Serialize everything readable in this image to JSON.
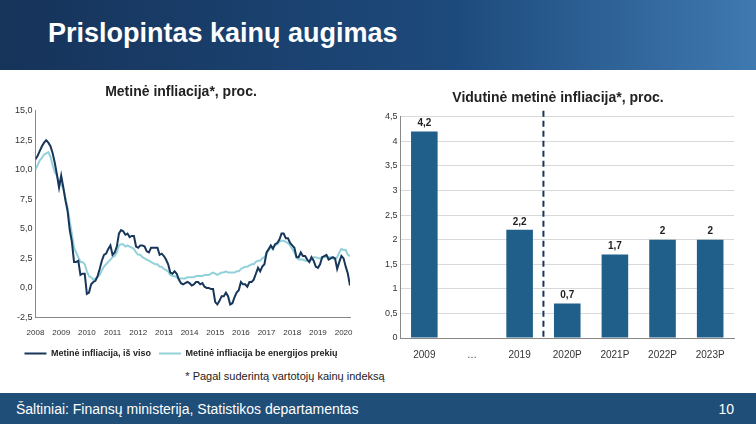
{
  "title": "Prislopintas kainų augimas",
  "footnote": "* Pagal suderintą vartotojų kainų indeksą",
  "source": "Šaltiniai: Finansų ministerija, Statistikos departamentas",
  "page_number": "10",
  "chart_data": [
    {
      "type": "line",
      "title": "Metinė infliacija*, proc.",
      "categories": [
        "2008",
        null,
        null,
        null,
        null,
        null,
        null,
        null,
        null,
        null,
        null,
        null,
        "2009",
        null,
        null,
        null,
        null,
        null,
        null,
        null,
        null,
        null,
        null,
        null,
        "2010",
        null,
        null,
        null,
        null,
        null,
        null,
        null,
        null,
        null,
        null,
        null,
        "2011",
        null,
        null,
        null,
        null,
        null,
        null,
        null,
        null,
        null,
        null,
        null,
        "2012",
        null,
        null,
        null,
        null,
        null,
        null,
        null,
        null,
        null,
        null,
        null,
        "2013",
        null,
        null,
        null,
        null,
        null,
        null,
        null,
        null,
        null,
        null,
        null,
        "2014",
        null,
        null,
        null,
        null,
        null,
        null,
        null,
        null,
        null,
        null,
        null,
        "2015",
        null,
        null,
        null,
        null,
        null,
        null,
        null,
        null,
        null,
        null,
        null,
        "2016",
        null,
        null,
        null,
        null,
        null,
        null,
        null,
        null,
        null,
        null,
        null,
        "2017",
        null,
        null,
        null,
        null,
        null,
        null,
        null,
        null,
        null,
        null,
        null,
        "2018",
        null,
        null,
        null,
        null,
        null,
        null,
        null,
        null,
        null,
        null,
        null,
        "2019",
        null,
        null,
        null,
        null,
        null,
        null,
        null,
        null,
        null,
        null,
        null,
        "2020",
        null,
        null,
        null
      ],
      "series": [
        {
          "name": "Metinė infliacija, iš viso",
          "color": "#17365a",
          "values": [
            10.9,
            11.2,
            11.6,
            12.0,
            12.3,
            12.5,
            12.3,
            12.0,
            11.4,
            10.6,
            9.6,
            8.5,
            9.5,
            8.5,
            7.4,
            6.5,
            4.9,
            3.9,
            2.2,
            2.2,
            2.3,
            1.1,
            1.2,
            1.2,
            -0.5,
            -0.4,
            0.3,
            0.5,
            0.6,
            1.0,
            1.6,
            2.3,
            2.8,
            2.9,
            3.3,
            3.6,
            2.8,
            3.0,
            3.5,
            4.6,
            4.9,
            4.8,
            4.5,
            4.6,
            4.3,
            4.4,
            4.4,
            3.5,
            3.4,
            3.6,
            3.6,
            3.5,
            3.1,
            3.0,
            3.4,
            3.4,
            3.4,
            3.4,
            2.8,
            2.9,
            2.7,
            2.4,
            2.0,
            1.3,
            1.2,
            1.4,
            1.2,
            0.7,
            0.4,
            0.3,
            0.4,
            0.5,
            0.4,
            0.2,
            0.3,
            0.5,
            0.5,
            0.3,
            0.4,
            0.1,
            0.0,
            0.0,
            -0.1,
            -0.1,
            -1.2,
            -1.4,
            -1.1,
            -0.7,
            -0.7,
            -0.4,
            -0.7,
            -1.4,
            -1.3,
            -0.8,
            -0.4,
            -0.2,
            0.5,
            0.3,
            0.3,
            0.1,
            0.5,
            0.5,
            0.7,
            1.2,
            1.7,
            1.4,
            1.8,
            2.0,
            3.0,
            3.3,
            3.6,
            3.3,
            3.7,
            3.8,
            4.1,
            4.6,
            4.6,
            4.2,
            4.2,
            3.8,
            3.6,
            3.4,
            2.6,
            2.6,
            3.0,
            2.7,
            2.7,
            2.4,
            2.2,
            2.6,
            2.3,
            1.8,
            1.7,
            2.0,
            2.6,
            2.7,
            2.8,
            2.4,
            2.5,
            2.6,
            2.5,
            1.6,
            2.2,
            2.7,
            2.5,
            1.8,
            1.2,
            0.2
          ]
        },
        {
          "name": "Metinė infliacija be energijos prekių",
          "color": "#93d1da",
          "values": [
            10.0,
            10.4,
            10.8,
            11.0,
            11.3,
            11.4,
            11.5,
            11.1,
            10.4,
            9.8,
            9.5,
            9.0,
            8.8,
            8.4,
            7.6,
            6.8,
            5.6,
            4.6,
            3.4,
            3.0,
            2.6,
            2.2,
            2.2,
            2.0,
            1.4,
            1.0,
            0.9,
            0.7,
            0.8,
            0.9,
            1.1,
            1.5,
            1.8,
            2.0,
            2.2,
            2.4,
            2.6,
            2.7,
            3.0,
            3.6,
            3.7,
            3.7,
            3.5,
            3.6,
            3.5,
            3.4,
            3.3,
            3.0,
            2.8,
            2.8,
            2.6,
            2.5,
            2.4,
            2.3,
            2.2,
            2.1,
            2.0,
            2.0,
            1.8,
            1.8,
            1.6,
            1.5,
            1.4,
            1.1,
            1.0,
            1.0,
            0.9,
            0.8,
            0.8,
            0.8,
            0.8,
            0.9,
            0.9,
            0.9,
            0.9,
            1.0,
            1.0,
            1.0,
            1.0,
            1.1,
            1.1,
            1.1,
            1.2,
            1.3,
            1.2,
            1.1,
            1.2,
            1.3,
            1.3,
            1.4,
            1.3,
            1.3,
            1.3,
            1.3,
            1.4,
            1.4,
            1.6,
            1.7,
            1.8,
            1.8,
            1.9,
            2.0,
            2.0,
            2.2,
            2.3,
            2.3,
            2.5,
            2.6,
            2.9,
            3.2,
            3.4,
            3.5,
            3.6,
            3.7,
            3.9,
            4.0,
            4.0,
            3.9,
            3.8,
            3.6,
            3.3,
            3.0,
            2.6,
            2.4,
            2.4,
            2.4,
            2.3,
            2.3,
            2.2,
            2.4,
            2.6,
            2.6,
            2.5,
            2.5,
            2.6,
            2.6,
            2.7,
            2.6,
            2.6,
            2.5,
            2.4,
            2.6,
            3.0,
            3.3,
            3.2,
            3.2,
            2.8,
            2.7
          ]
        }
      ],
      "ylim": [
        -2.5,
        15
      ],
      "yticks": [
        {
          "value": -2.5,
          "label": "-2,5"
        },
        {
          "value": 0,
          "label": "0,0"
        },
        {
          "value": 2.5,
          "label": "2,5"
        },
        {
          "value": 5,
          "label": "5,0"
        },
        {
          "value": 7.5,
          "label": "7,5"
        },
        {
          "value": 10,
          "label": "10,0"
        },
        {
          "value": 12.5,
          "label": "12,5"
        },
        {
          "value": 15,
          "label": "15,0"
        }
      ],
      "grid": false,
      "legend": "bottom"
    },
    {
      "type": "bar",
      "title": "Vidutinė metinė infliacija*, proc.",
      "categories": [
        "2009",
        "…",
        "2019",
        "2020P",
        "2021P",
        "2022P",
        "2023P"
      ],
      "values": [
        4.2,
        null,
        2.2,
        0.7,
        1.7,
        2,
        2
      ],
      "value_labels": [
        "4,2",
        null,
        "2,2",
        "0,7",
        "1,7",
        "2",
        "2"
      ],
      "color": "#215f8b",
      "ylim": [
        0,
        4.5
      ],
      "yticks": [
        0,
        {
          "value": 0.5,
          "label": "0,5"
        },
        1,
        {
          "value": 1.5,
          "label": "1,5"
        },
        2,
        {
          "value": 2.5,
          "label": "2,5"
        },
        3,
        {
          "value": 3.5,
          "label": "3,5"
        },
        4,
        {
          "value": 4.5,
          "label": "4,5"
        }
      ],
      "grid": true,
      "data_labels": true
    }
  ]
}
